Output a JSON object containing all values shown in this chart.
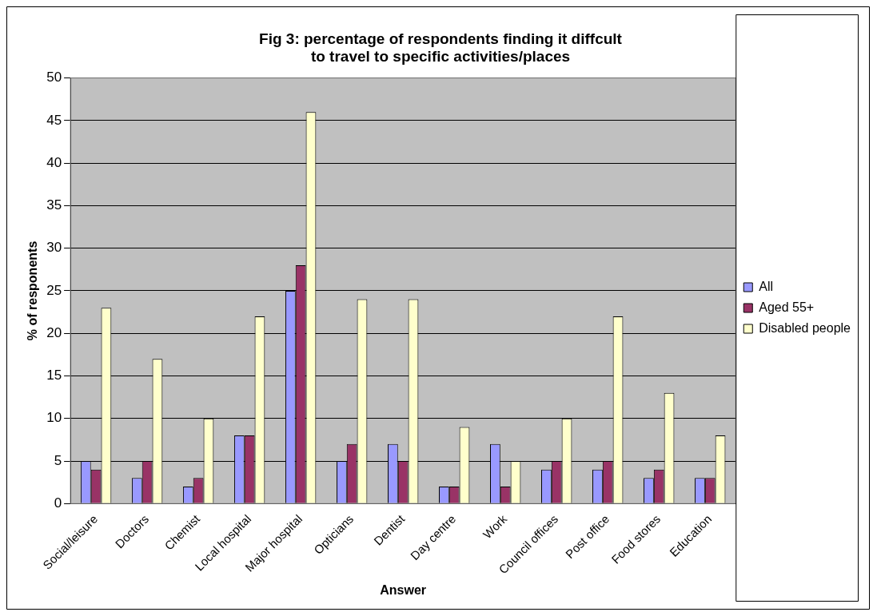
{
  "chart_data": {
    "type": "bar",
    "title": "Fig 3: percentage of respondents finding it diffcult to travel to specific activities/places",
    "xlabel": "Answer",
    "ylabel": "% of responents",
    "categories": [
      "Social/leisure",
      "Doctors",
      "Chemist",
      "Local hospital",
      "Major hospital",
      "Opticians",
      "Dentist",
      "Day centre",
      "Work",
      "Council offices",
      "Post office",
      "Food stores",
      "Education"
    ],
    "series": [
      {
        "name": "All",
        "color": "#9999ff",
        "values": [
          5,
          3,
          2,
          8,
          25,
          5,
          7,
          2,
          7,
          4,
          4,
          3,
          3
        ]
      },
      {
        "name": "Aged 55+",
        "color": "#993366",
        "values": [
          4,
          5,
          3,
          8,
          28,
          7,
          5,
          2,
          2,
          5,
          5,
          4,
          3
        ]
      },
      {
        "name": "Disabled people",
        "color": "#ffffcc",
        "values": [
          23,
          17,
          10,
          22,
          46,
          24,
          24,
          9,
          5,
          10,
          22,
          13,
          8
        ]
      }
    ],
    "ylim": [
      0,
      50
    ],
    "yticks": [
      0,
      5,
      10,
      15,
      20,
      25,
      30,
      35,
      40,
      45,
      50
    ],
    "grid": "y",
    "legend": "right"
  }
}
